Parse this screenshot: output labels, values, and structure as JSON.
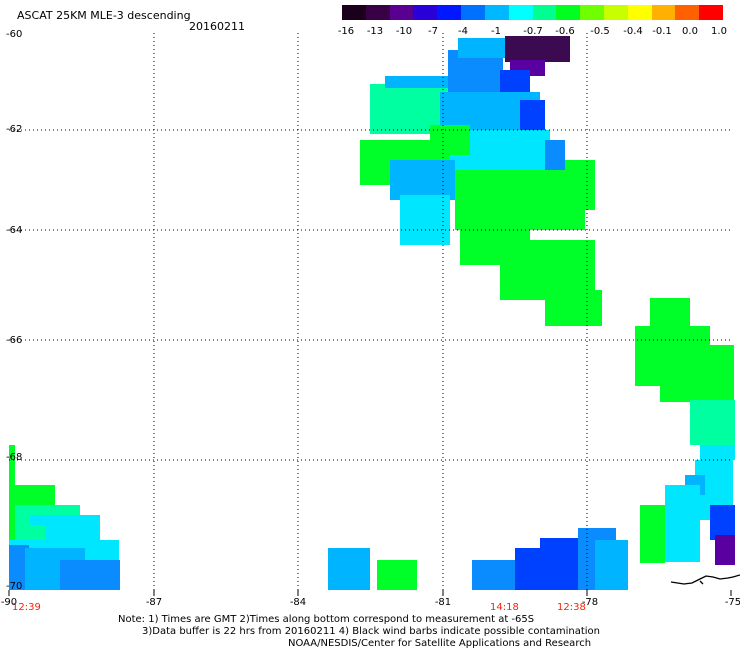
{
  "header": {
    "title": "ASCAT 25KM MLE-3 descending",
    "date": "20160211"
  },
  "colorbar": {
    "labels": [
      "-16",
      "-13",
      "-10",
      "-7",
      "-4",
      "-1",
      "-0.7",
      "-0.6",
      "-0.5",
      "-0.4",
      "-0.1",
      "0.0",
      "1.0"
    ],
    "colors": [
      "#1a001a",
      "#3a0046",
      "#5a0090",
      "#2a00d8",
      "#0018ff",
      "#0070ff",
      "#00b8ff",
      "#00ffff",
      "#00ff90",
      "#00ff20",
      "#70ff00",
      "#c8ff00",
      "#ffff00",
      "#ffb000",
      "#ff6000",
      "#ff0000"
    ]
  },
  "axes": {
    "lon_labels": [
      "-90",
      "-87",
      "-84",
      "-81",
      "-78",
      "-75"
    ],
    "lat_labels": [
      "-60",
      "-62",
      "-64",
      "-66",
      "-68",
      "-70"
    ]
  },
  "time_labels": [
    "12:39",
    "14:18",
    "12:38"
  ],
  "notes": {
    "line1": "Note: 1) Times are GMT 2)Times along bottom correspond to measurement at -65S",
    "line2": "3)Data buffer is 22 hrs from 20160211 4) Black wind barbs indicate possible contamination",
    "line3": "NOAA/NESDIS/Center for Satellite Applications and Research"
  },
  "palette": {
    "dark_purple": "#3c0a50",
    "violet": "#5a00a0",
    "blue": "#0040ff",
    "mid_blue": "#0a8cff",
    "sky_blue": "#00b4ff",
    "cyan": "#00e6ff",
    "aqua_green": "#00ffa0",
    "green": "#00ff28",
    "time_red": "#ff2000"
  }
}
